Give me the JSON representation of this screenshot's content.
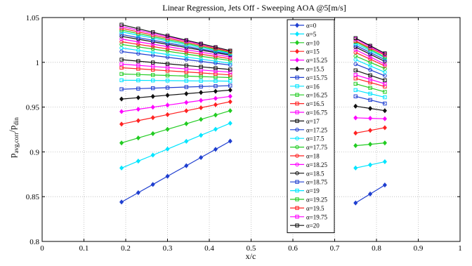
{
  "chart_data": {
    "type": "line",
    "title": "Linear Regression, Jets Off - Sweeping AOA @5[m/s]",
    "xlabel": "x/c",
    "ylabel": "p",
    "ylabel_sub": "avg,corr",
    "ylabel_div": "/p",
    "ylabel_sub2": "din",
    "xlim": [
      0,
      1
    ],
    "ylim": [
      0.8,
      1.05
    ],
    "xticks": [
      "0",
      "0.1",
      "0.2",
      "0.3",
      "0.4",
      "0.5",
      "0.6",
      "0.7",
      "0.8",
      "0.9",
      "1"
    ],
    "yticks": [
      "0.8",
      "0.85",
      "0.9",
      "0.95",
      "1",
      "1.05"
    ],
    "grid": true,
    "legend_position": "center-right",
    "x_left": [
      0.19,
      0.23,
      0.265,
      0.3,
      0.345,
      0.38,
      0.415,
      0.45
    ],
    "x_right": [
      0.75,
      0.785,
      0.82
    ],
    "series": [
      {
        "name": "α=0",
        "color": "#1f3fd0",
        "marker": "diamond",
        "left": [
          0.844,
          0.912
        ],
        "right": [
          0.843,
          0.863
        ]
      },
      {
        "name": "α=5",
        "color": "#00e5ff",
        "marker": "diamond",
        "left": [
          0.882,
          0.932
        ],
        "right": [
          0.882,
          0.889
        ]
      },
      {
        "name": "α=10",
        "color": "#22cc22",
        "marker": "diamond",
        "left": [
          0.91,
          0.946
        ],
        "right": [
          0.907,
          0.91
        ]
      },
      {
        "name": "α=15",
        "color": "#ff2222",
        "marker": "diamond",
        "left": [
          0.931,
          0.956
        ],
        "right": [
          0.921,
          0.927
        ]
      },
      {
        "name": "α=15.25",
        "color": "#ff00ff",
        "marker": "diamond",
        "left": [
          0.945,
          0.962
        ],
        "right": [
          0.938,
          0.937
        ]
      },
      {
        "name": "α=15.5",
        "color": "#111111",
        "marker": "diamond",
        "left": [
          0.959,
          0.969
        ],
        "right": [
          0.951,
          0.946
        ]
      },
      {
        "name": "α=15.75",
        "color": "#1f3fd0",
        "marker": "square",
        "left": [
          0.97,
          0.974
        ],
        "right": [
          0.962,
          0.954
        ]
      },
      {
        "name": "α=16",
        "color": "#00e5ff",
        "marker": "square",
        "left": [
          0.98,
          0.979
        ],
        "right": [
          0.969,
          0.961
        ]
      },
      {
        "name": "α=16.25",
        "color": "#22cc22",
        "marker": "square",
        "left": [
          0.987,
          0.983
        ],
        "right": [
          0.976,
          0.967
        ]
      },
      {
        "name": "α=16.5",
        "color": "#ff2222",
        "marker": "square",
        "left": [
          0.994,
          0.986
        ],
        "right": [
          0.982,
          0.973
        ]
      },
      {
        "name": "α=16.75",
        "color": "#ff00ff",
        "marker": "square",
        "left": [
          0.998,
          0.989
        ],
        "right": [
          0.986,
          0.976
        ]
      },
      {
        "name": "α=17",
        "color": "#111111",
        "marker": "square",
        "left": [
          1.003,
          0.992
        ],
        "right": [
          0.991,
          0.98
        ]
      },
      {
        "name": "α=17.25",
        "color": "#1f3fd0",
        "marker": "circle",
        "left": [
          1.012,
          0.997
        ],
        "right": [
          0.998,
          0.985
        ]
      },
      {
        "name": "α=17.5",
        "color": "#00e5ff",
        "marker": "circle",
        "left": [
          1.016,
          0.999
        ],
        "right": [
          1.003,
          0.989
        ]
      },
      {
        "name": "α=17.75",
        "color": "#22cc22",
        "marker": "circle",
        "left": [
          1.02,
          1.002
        ],
        "right": [
          1.007,
          0.993
        ]
      },
      {
        "name": "α=18",
        "color": "#ff2222",
        "marker": "circle",
        "left": [
          1.023,
          1.004
        ],
        "right": [
          1.011,
          0.996
        ]
      },
      {
        "name": "α=18.25",
        "color": "#ff00ff",
        "marker": "circle",
        "left": [
          1.026,
          1.006
        ],
        "right": [
          1.014,
          0.998
        ]
      },
      {
        "name": "α=18.5",
        "color": "#111111",
        "marker": "circle",
        "left": [
          1.029,
          1.008
        ],
        "right": [
          1.017,
          1.001
        ]
      },
      {
        "name": "α=18.75",
        "color": "#1f3fd0",
        "marker": "square",
        "left": [
          1.031,
          1.009
        ],
        "right": [
          1.019,
          1.003
        ]
      },
      {
        "name": "α=19",
        "color": "#00e5ff",
        "marker": "square",
        "left": [
          1.034,
          1.01
        ],
        "right": [
          1.021,
          1.005
        ]
      },
      {
        "name": "α=19.25",
        "color": "#22cc22",
        "marker": "square",
        "left": [
          1.036,
          1.011
        ],
        "right": [
          1.023,
          1.006
        ]
      },
      {
        "name": "α=19.5",
        "color": "#ff2222",
        "marker": "square",
        "left": [
          1.038,
          1.012
        ],
        "right": [
          1.024,
          1.008
        ]
      },
      {
        "name": "α=19.75",
        "color": "#ff00ff",
        "marker": "square",
        "left": [
          1.04,
          1.013
        ],
        "right": [
          1.026,
          1.009
        ]
      },
      {
        "name": "α=20",
        "color": "#111111",
        "marker": "square",
        "left": [
          1.042,
          1.013
        ],
        "right": [
          1.027,
          1.01
        ]
      }
    ]
  }
}
